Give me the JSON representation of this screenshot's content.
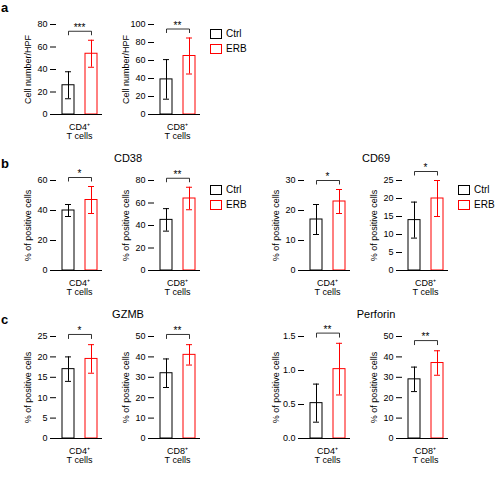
{
  "chart_data": [
    {
      "type": "bar",
      "panel": "a",
      "categories": [
        "CD4⁺\nT cells"
      ],
      "ylabel": "Cell number/HPF",
      "ylim": [
        0,
        80
      ],
      "yticks": [
        0,
        20,
        40,
        60,
        80
      ],
      "series": [
        {
          "name": "Ctrl",
          "color": "#000000",
          "values": [
            26
          ],
          "error": [
            12
          ]
        },
        {
          "name": "ERB",
          "color": "#ff0000",
          "values": [
            54
          ],
          "error": [
            12
          ]
        }
      ],
      "annotations": [
        {
          "text": "***"
        }
      ]
    },
    {
      "type": "bar",
      "categories": [
        "CD8⁺\nT cells"
      ],
      "ylabel": "Cell number/HPF",
      "ylim": [
        0,
        100
      ],
      "yticks": [
        0,
        20,
        40,
        60,
        80,
        100
      ],
      "series": [
        {
          "name": "Ctrl",
          "color": "#000000",
          "values": [
            39
          ],
          "error": [
            22
          ]
        },
        {
          "name": "ERB",
          "color": "#ff0000",
          "values": [
            65
          ],
          "error": [
            20
          ]
        }
      ],
      "annotations": [
        {
          "text": "**"
        }
      ],
      "legend": "right"
    },
    {
      "type": "bar",
      "panel": "b",
      "title": "CD38",
      "categories": [
        "CD4⁺\nT cells"
      ],
      "ylabel": "% of positive cells",
      "ylim": [
        0,
        60
      ],
      "yticks": [
        0,
        20,
        40,
        60
      ],
      "series": [
        {
          "name": "Ctrl",
          "color": "#000000",
          "values": [
            40
          ],
          "error": [
            4
          ]
        },
        {
          "name": "ERB",
          "color": "#ff0000",
          "values": [
            47
          ],
          "error": [
            9
          ]
        }
      ],
      "annotations": [
        {
          "text": "*"
        }
      ]
    },
    {
      "type": "bar",
      "categories": [
        "CD8⁺\nT cells"
      ],
      "ylabel": "% of positive cells",
      "ylim": [
        0,
        80
      ],
      "yticks": [
        0,
        20,
        40,
        60,
        80
      ],
      "series": [
        {
          "name": "Ctrl",
          "color": "#000000",
          "values": [
            45
          ],
          "error": [
            10
          ]
        },
        {
          "name": "ERB",
          "color": "#ff0000",
          "values": [
            64
          ],
          "error": [
            10
          ]
        }
      ],
      "annotations": [
        {
          "text": "**"
        }
      ],
      "legend": "right"
    },
    {
      "type": "bar",
      "title": "CD69",
      "categories": [
        "CD4⁺\nT cells"
      ],
      "ylabel": "% of positive cells",
      "ylim": [
        0,
        30
      ],
      "yticks": [
        0,
        10,
        20,
        30
      ],
      "series": [
        {
          "name": "Ctrl",
          "color": "#000000",
          "values": [
            17
          ],
          "error": [
            5
          ]
        },
        {
          "name": "ERB",
          "color": "#ff0000",
          "values": [
            23
          ],
          "error": [
            4
          ]
        }
      ],
      "annotations": [
        {
          "text": "*"
        }
      ]
    },
    {
      "type": "bar",
      "categories": [
        "CD8⁺\nT cells"
      ],
      "ylabel": "% of positive cells",
      "ylim": [
        0,
        25
      ],
      "yticks": [
        0,
        5,
        10,
        15,
        20,
        25
      ],
      "series": [
        {
          "name": "Ctrl",
          "color": "#000000",
          "values": [
            14
          ],
          "error": [
            5
          ]
        },
        {
          "name": "ERB",
          "color": "#ff0000",
          "values": [
            20
          ],
          "error": [
            5
          ]
        }
      ],
      "annotations": [
        {
          "text": "*"
        }
      ],
      "legend": "right"
    },
    {
      "type": "bar",
      "panel": "c",
      "title": "GZMB",
      "categories": [
        "CD4⁺\nT cells"
      ],
      "ylabel": "% of positive cells",
      "ylim": [
        0,
        25
      ],
      "yticks": [
        0,
        5,
        10,
        15,
        20,
        25
      ],
      "series": [
        {
          "name": "Ctrl",
          "color": "#000000",
          "values": [
            17
          ],
          "error": [
            3
          ]
        },
        {
          "name": "ERB",
          "color": "#ff0000",
          "values": [
            19.5
          ],
          "error": [
            3.5
          ]
        }
      ],
      "annotations": [
        {
          "text": "*"
        }
      ]
    },
    {
      "type": "bar",
      "categories": [
        "CD8⁺\nT cells"
      ],
      "ylabel": "% of positive cells",
      "ylim": [
        0,
        50
      ],
      "yticks": [
        0,
        10,
        20,
        30,
        40,
        50
      ],
      "series": [
        {
          "name": "Ctrl",
          "color": "#000000",
          "values": [
            32
          ],
          "error": [
            7
          ]
        },
        {
          "name": "ERB",
          "color": "#ff0000",
          "values": [
            41
          ],
          "error": [
            5
          ]
        }
      ],
      "annotations": [
        {
          "text": "**"
        }
      ]
    },
    {
      "type": "bar",
      "title": "Perforin",
      "categories": [
        "CD4⁺\nT cells"
      ],
      "ylabel": "% of positive cells",
      "ylim": [
        0,
        1.5
      ],
      "yticks": [
        {
          "value": 0,
          "label": "0.0"
        },
        0.5,
        {
          "value": 1,
          "label": "1.0"
        },
        1.5
      ],
      "series": [
        {
          "name": "Ctrl",
          "color": "#000000",
          "values": [
            0.52
          ],
          "error": [
            0.28
          ]
        },
        {
          "name": "ERB",
          "color": "#ff0000",
          "values": [
            1.02
          ],
          "error": [
            0.38
          ]
        }
      ],
      "annotations": [
        {
          "text": "**"
        }
      ]
    },
    {
      "type": "bar",
      "categories": [
        "CD8⁺\nT cells"
      ],
      "ylabel": "% of positive cells",
      "ylim": [
        0,
        50
      ],
      "yticks": [
        0,
        10,
        20,
        30,
        40,
        50
      ],
      "series": [
        {
          "name": "Ctrl",
          "color": "#000000",
          "values": [
            29
          ],
          "error": [
            6
          ]
        },
        {
          "name": "ERB",
          "color": "#ff0000",
          "values": [
            37
          ],
          "error": [
            6
          ]
        }
      ],
      "annotations": [
        {
          "text": "**"
        }
      ]
    }
  ]
}
